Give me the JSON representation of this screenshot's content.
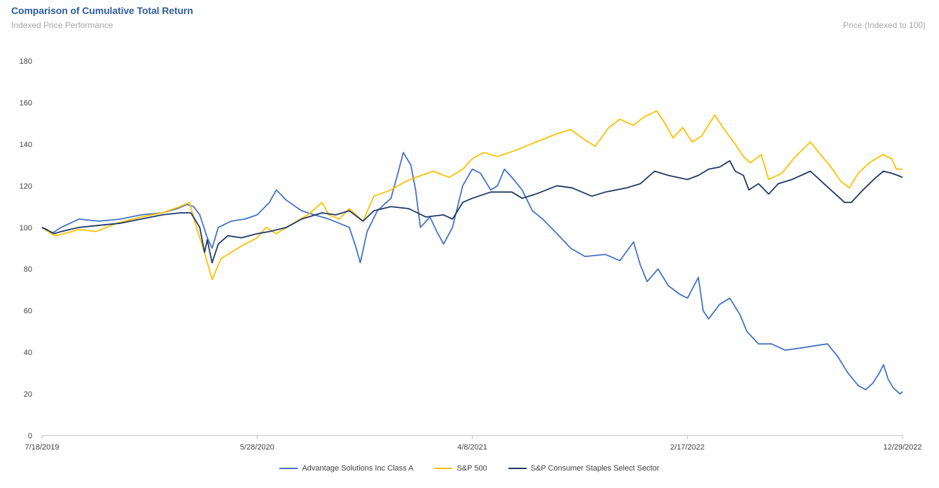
{
  "header": {
    "title": "Comparison of Cumulative Total Return",
    "subtitle": "Indexed Price Performance",
    "axis_label": "Price (Indexed to 100)"
  },
  "chart_data": {
    "type": "line",
    "title": "Comparison of Cumulative Total Return",
    "subtitle": "Indexed Price Performance",
    "ylabel": "Price (Indexed to 100)",
    "xlabel": "",
    "ylim": [
      0,
      180
    ],
    "yticks": [
      0,
      20,
      40,
      60,
      80,
      100,
      120,
      140,
      160,
      180
    ],
    "xticks": [
      "7/18/2019",
      "5/28/2020",
      "4/8/2021",
      "2/17/2022",
      "12/29/2022"
    ],
    "x_range": [
      "2019-07-18",
      "2022-12-29"
    ],
    "legend_position": "bottom",
    "grid": false,
    "series": [
      {
        "name": "Advantage Solutions Inc Class A",
        "color": "#4472C4",
        "points": [
          [
            "2019-07-18",
            100
          ],
          [
            "2019-07-25",
            99
          ],
          [
            "2019-08-01",
            97
          ],
          [
            "2019-08-15",
            100
          ],
          [
            "2019-09-10",
            104
          ],
          [
            "2019-10-10",
            103
          ],
          [
            "2019-11-10",
            104
          ],
          [
            "2019-12-10",
            106
          ],
          [
            "2020-01-10",
            107
          ],
          [
            "2020-02-01",
            109
          ],
          [
            "2020-02-15",
            111
          ],
          [
            "2020-02-25",
            110
          ],
          [
            "2020-03-05",
            106
          ],
          [
            "2020-03-16",
            95
          ],
          [
            "2020-03-23",
            90
          ],
          [
            "2020-04-01",
            100
          ],
          [
            "2020-04-20",
            103
          ],
          [
            "2020-05-10",
            104
          ],
          [
            "2020-05-28",
            106
          ],
          [
            "2020-06-15",
            112
          ],
          [
            "2020-06-25",
            118
          ],
          [
            "2020-07-10",
            113
          ],
          [
            "2020-08-01",
            108
          ],
          [
            "2020-08-20",
            106
          ],
          [
            "2020-09-10",
            104
          ],
          [
            "2020-09-25",
            102
          ],
          [
            "2020-10-10",
            100
          ],
          [
            "2020-10-20",
            90
          ],
          [
            "2020-10-26",
            83
          ],
          [
            "2020-11-05",
            98
          ],
          [
            "2020-11-20",
            108
          ],
          [
            "2020-12-10",
            114
          ],
          [
            "2020-12-20",
            126
          ],
          [
            "2020-12-28",
            136
          ],
          [
            "2021-01-08",
            130
          ],
          [
            "2021-01-15",
            118
          ],
          [
            "2021-01-22",
            100
          ],
          [
            "2021-02-05",
            105
          ],
          [
            "2021-02-15",
            98
          ],
          [
            "2021-02-25",
            92
          ],
          [
            "2021-03-10",
            100
          ],
          [
            "2021-03-25",
            120
          ],
          [
            "2021-04-08",
            128
          ],
          [
            "2021-04-20",
            126
          ],
          [
            "2021-05-05",
            118
          ],
          [
            "2021-05-15",
            120
          ],
          [
            "2021-05-25",
            128
          ],
          [
            "2021-06-05",
            124
          ],
          [
            "2021-06-20",
            118
          ],
          [
            "2021-07-05",
            108
          ],
          [
            "2021-07-20",
            104
          ],
          [
            "2021-08-10",
            97
          ],
          [
            "2021-08-30",
            90
          ],
          [
            "2021-09-20",
            86
          ],
          [
            "2021-10-20",
            87
          ],
          [
            "2021-11-10",
            84
          ],
          [
            "2021-11-30",
            93
          ],
          [
            "2021-12-10",
            82
          ],
          [
            "2021-12-20",
            74
          ],
          [
            "2022-01-05",
            80
          ],
          [
            "2022-01-20",
            72
          ],
          [
            "2022-02-05",
            68
          ],
          [
            "2022-02-17",
            66
          ],
          [
            "2022-03-05",
            76
          ],
          [
            "2022-03-12",
            60
          ],
          [
            "2022-03-20",
            56
          ],
          [
            "2022-04-05",
            63
          ],
          [
            "2022-04-20",
            66
          ],
          [
            "2022-05-05",
            58
          ],
          [
            "2022-05-15",
            50
          ],
          [
            "2022-06-01",
            44
          ],
          [
            "2022-06-20",
            44
          ],
          [
            "2022-07-10",
            41
          ],
          [
            "2022-08-01",
            42
          ],
          [
            "2022-08-20",
            43
          ],
          [
            "2022-09-10",
            44
          ],
          [
            "2022-09-25",
            38
          ],
          [
            "2022-10-10",
            30
          ],
          [
            "2022-10-25",
            24
          ],
          [
            "2022-11-05",
            22
          ],
          [
            "2022-11-15",
            25
          ],
          [
            "2022-11-25",
            30
          ],
          [
            "2022-12-01",
            34
          ],
          [
            "2022-12-08",
            27
          ],
          [
            "2022-12-15",
            23
          ],
          [
            "2022-12-25",
            20
          ],
          [
            "2022-12-29",
            21
          ]
        ]
      },
      {
        "name": "S&P 500",
        "color": "#FFC000",
        "points": [
          [
            "2019-07-18",
            100
          ],
          [
            "2019-08-05",
            96
          ],
          [
            "2019-08-20",
            97
          ],
          [
            "2019-09-10",
            99
          ],
          [
            "2019-10-05",
            98
          ],
          [
            "2019-11-05",
            102
          ],
          [
            "2019-12-10",
            105
          ],
          [
            "2020-01-10",
            107
          ],
          [
            "2020-02-05",
            110
          ],
          [
            "2020-02-19",
            112
          ],
          [
            "2020-02-28",
            101
          ],
          [
            "2020-03-10",
            90
          ],
          [
            "2020-03-23",
            75
          ],
          [
            "2020-04-05",
            85
          ],
          [
            "2020-04-20",
            88
          ],
          [
            "2020-05-05",
            91
          ],
          [
            "2020-05-28",
            95
          ],
          [
            "2020-06-10",
            100
          ],
          [
            "2020-06-25",
            97
          ],
          [
            "2020-07-15",
            101
          ],
          [
            "2020-08-10",
            106
          ],
          [
            "2020-08-31",
            112
          ],
          [
            "2020-09-10",
            106
          ],
          [
            "2020-09-25",
            104
          ],
          [
            "2020-10-10",
            109
          ],
          [
            "2020-10-30",
            103
          ],
          [
            "2020-11-15",
            115
          ],
          [
            "2020-12-10",
            118
          ],
          [
            "2020-12-31",
            122
          ],
          [
            "2021-01-15",
            124
          ],
          [
            "2021-02-10",
            127
          ],
          [
            "2021-03-05",
            124
          ],
          [
            "2021-03-25",
            128
          ],
          [
            "2021-04-08",
            133
          ],
          [
            "2021-04-25",
            136
          ],
          [
            "2021-05-15",
            134
          ],
          [
            "2021-06-10",
            137
          ],
          [
            "2021-07-10",
            141
          ],
          [
            "2021-08-10",
            145
          ],
          [
            "2021-08-30",
            147
          ],
          [
            "2021-09-20",
            142
          ],
          [
            "2021-10-05",
            139
          ],
          [
            "2021-10-25",
            148
          ],
          [
            "2021-11-10",
            152
          ],
          [
            "2021-11-30",
            149
          ],
          [
            "2021-12-15",
            153
          ],
          [
            "2022-01-03",
            156
          ],
          [
            "2022-01-15",
            150
          ],
          [
            "2022-01-27",
            143
          ],
          [
            "2022-02-10",
            148
          ],
          [
            "2022-02-24",
            141
          ],
          [
            "2022-03-10",
            144
          ],
          [
            "2022-03-29",
            154
          ],
          [
            "2022-04-10",
            148
          ],
          [
            "2022-04-28",
            140
          ],
          [
            "2022-05-10",
            134
          ],
          [
            "2022-05-20",
            131
          ],
          [
            "2022-06-05",
            135
          ],
          [
            "2022-06-16",
            123
          ],
          [
            "2022-07-05",
            126
          ],
          [
            "2022-07-25",
            134
          ],
          [
            "2022-08-16",
            141
          ],
          [
            "2022-09-05",
            133
          ],
          [
            "2022-09-15",
            129
          ],
          [
            "2022-09-30",
            122
          ],
          [
            "2022-10-12",
            119
          ],
          [
            "2022-10-25",
            126
          ],
          [
            "2022-11-10",
            131
          ],
          [
            "2022-11-30",
            135
          ],
          [
            "2022-12-13",
            133
          ],
          [
            "2022-12-20",
            128
          ],
          [
            "2022-12-29",
            128
          ]
        ]
      },
      {
        "name": "S&P Consumer Staples Select Sector",
        "color": "#1F3864",
        "points": [
          [
            "2019-07-18",
            100
          ],
          [
            "2019-08-05",
            97
          ],
          [
            "2019-08-15",
            98
          ],
          [
            "2019-09-10",
            100
          ],
          [
            "2019-10-10",
            101
          ],
          [
            "2019-11-10",
            102
          ],
          [
            "2019-12-10",
            104
          ],
          [
            "2020-01-10",
            106
          ],
          [
            "2020-02-05",
            107
          ],
          [
            "2020-02-21",
            107
          ],
          [
            "2020-03-05",
            100
          ],
          [
            "2020-03-12",
            88
          ],
          [
            "2020-03-16",
            94
          ],
          [
            "2020-03-23",
            83
          ],
          [
            "2020-04-01",
            92
          ],
          [
            "2020-04-15",
            96
          ],
          [
            "2020-05-05",
            95
          ],
          [
            "2020-05-28",
            97
          ],
          [
            "2020-06-15",
            98
          ],
          [
            "2020-07-10",
            100
          ],
          [
            "2020-08-01",
            104
          ],
          [
            "2020-08-31",
            107
          ],
          [
            "2020-09-20",
            106
          ],
          [
            "2020-10-10",
            108
          ],
          [
            "2020-10-30",
            103
          ],
          [
            "2020-11-15",
            108
          ],
          [
            "2020-12-10",
            110
          ],
          [
            "2021-01-05",
            109
          ],
          [
            "2021-01-30",
            105
          ],
          [
            "2021-02-25",
            106
          ],
          [
            "2021-03-10",
            104
          ],
          [
            "2021-03-25",
            112
          ],
          [
            "2021-04-08",
            114
          ],
          [
            "2021-05-05",
            117
          ],
          [
            "2021-06-05",
            117
          ],
          [
            "2021-06-20",
            114
          ],
          [
            "2021-07-10",
            116
          ],
          [
            "2021-08-10",
            120
          ],
          [
            "2021-09-01",
            119
          ],
          [
            "2021-09-30",
            115
          ],
          [
            "2021-10-20",
            117
          ],
          [
            "2021-11-20",
            119
          ],
          [
            "2021-12-10",
            121
          ],
          [
            "2021-12-31",
            127
          ],
          [
            "2022-01-20",
            125
          ],
          [
            "2022-02-17",
            123
          ],
          [
            "2022-03-05",
            125
          ],
          [
            "2022-03-20",
            128
          ],
          [
            "2022-04-05",
            129
          ],
          [
            "2022-04-20",
            132
          ],
          [
            "2022-04-28",
            127
          ],
          [
            "2022-05-10",
            125
          ],
          [
            "2022-05-18",
            118
          ],
          [
            "2022-06-01",
            121
          ],
          [
            "2022-06-16",
            116
          ],
          [
            "2022-06-30",
            121
          ],
          [
            "2022-07-20",
            123
          ],
          [
            "2022-08-16",
            127
          ],
          [
            "2022-09-05",
            121
          ],
          [
            "2022-09-25",
            115
          ],
          [
            "2022-10-05",
            112
          ],
          [
            "2022-10-15",
            112
          ],
          [
            "2022-11-01",
            118
          ],
          [
            "2022-11-20",
            124
          ],
          [
            "2022-12-01",
            127
          ],
          [
            "2022-12-13",
            126
          ],
          [
            "2022-12-22",
            125
          ],
          [
            "2022-12-29",
            124
          ]
        ]
      }
    ]
  }
}
